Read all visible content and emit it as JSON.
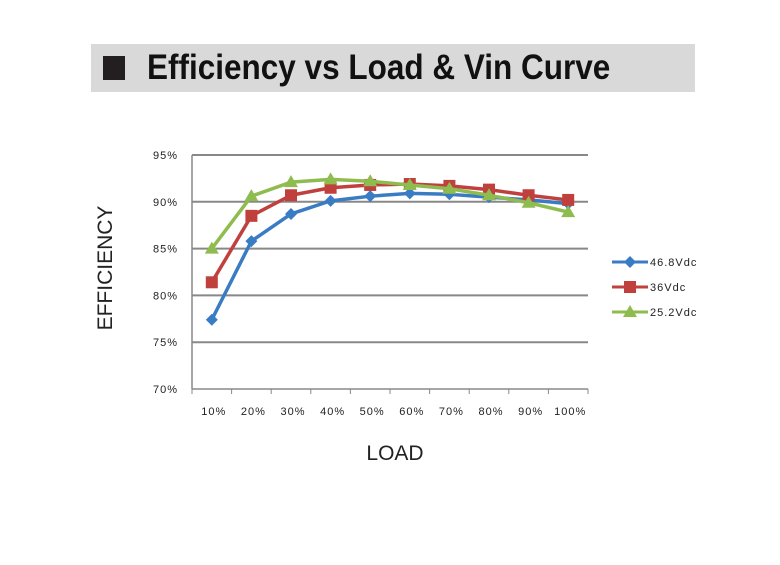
{
  "chart_data": {
    "type": "line",
    "title": "Efficiency vs Load & Vin Curve",
    "xlabel": "LOAD",
    "ylabel": "EFFICIENCY",
    "categories": [
      "10%",
      "20%",
      "30%",
      "40%",
      "50%",
      "60%",
      "70%",
      "80%",
      "90%",
      "100%"
    ],
    "y_ticks": [
      "70%",
      "75%",
      "80%",
      "85%",
      "90%",
      "95%"
    ],
    "ylim": [
      70,
      95
    ],
    "grid": true,
    "legend_position": "right",
    "series": [
      {
        "name": "46.8Vdc",
        "color": "#3a7cc4",
        "marker": "diamond",
        "values": [
          77.4,
          85.8,
          88.7,
          90.1,
          90.6,
          90.9,
          90.8,
          90.5,
          90.2,
          89.8
        ]
      },
      {
        "name": "36Vdc",
        "color": "#c0403e",
        "marker": "square",
        "values": [
          81.4,
          88.5,
          90.7,
          91.5,
          91.8,
          91.9,
          91.7,
          91.3,
          90.7,
          90.2
        ]
      },
      {
        "name": "25.2Vdc",
        "color": "#8fbc4f",
        "marker": "triangle",
        "values": [
          85.0,
          90.6,
          92.1,
          92.4,
          92.2,
          91.8,
          91.4,
          90.7,
          89.9,
          88.9
        ]
      }
    ]
  }
}
